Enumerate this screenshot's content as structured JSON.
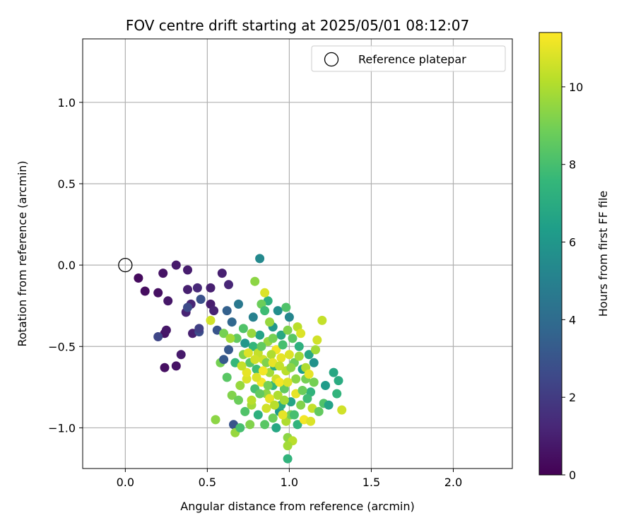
{
  "chart_data": {
    "type": "scatter",
    "title": "FOV centre drift starting at 2025/05/01 08:12:07",
    "xlabel": "Angular distance from reference (arcmin)",
    "ylabel": "Rotation from reference (arcmin)",
    "xlim": [
      -0.26,
      2.36
    ],
    "ylim": [
      -1.25,
      1.39
    ],
    "xticks": [
      0.0,
      0.5,
      1.0,
      1.5,
      2.0
    ],
    "xtick_labels": [
      "0.0",
      "0.5",
      "1.0",
      "1.5",
      "2.0"
    ],
    "yticks": [
      -1.0,
      -0.5,
      0.0,
      0.5,
      1.0
    ],
    "ytick_labels": [
      "−1.0",
      "−0.5",
      "0.0",
      "0.5",
      "1.0"
    ],
    "grid": true,
    "legend": {
      "placement": "top-right",
      "entries": [
        "Reference platepar"
      ]
    },
    "reference_point": {
      "x": 0.0,
      "y": 0.0
    },
    "colorbar": {
      "label": "Hours from first FF file",
      "range": [
        0,
        11.4
      ],
      "ticks": [
        0,
        2,
        4,
        6,
        8,
        10
      ],
      "tick_labels": [
        "0",
        "2",
        "4",
        "6",
        "8",
        "10"
      ],
      "colormap": "viridis",
      "colormap_stops": [
        "#440154",
        "#482878",
        "#3e4989",
        "#31688e",
        "#26828e",
        "#1f9e89",
        "#35b779",
        "#6ece58",
        "#b5de2b",
        "#fde725"
      ]
    },
    "series": [
      {
        "x_y_hours": [
          [
            0.08,
            -0.08,
            0.3
          ],
          [
            0.12,
            -0.16,
            0.4
          ],
          [
            0.2,
            -0.17,
            0.5
          ],
          [
            0.23,
            -0.05,
            0.6
          ],
          [
            0.26,
            -0.22,
            0.7
          ],
          [
            0.31,
            0.0,
            0.8
          ],
          [
            0.38,
            -0.03,
            0.9
          ],
          [
            0.38,
            -0.15,
            1.0
          ],
          [
            0.37,
            -0.29,
            1.1
          ],
          [
            0.4,
            -0.24,
            1.2
          ],
          [
            0.44,
            -0.14,
            1.3
          ],
          [
            0.52,
            -0.14,
            1.0
          ],
          [
            0.52,
            -0.24,
            0.9
          ],
          [
            0.54,
            -0.28,
            1.1
          ],
          [
            0.59,
            -0.05,
            1.0
          ],
          [
            0.63,
            -0.12,
            1.2
          ],
          [
            0.24,
            -0.42,
            0.6
          ],
          [
            0.25,
            -0.4,
            0.7
          ],
          [
            0.24,
            -0.63,
            0.5
          ],
          [
            0.31,
            -0.62,
            0.6
          ],
          [
            0.34,
            -0.55,
            0.8
          ],
          [
            0.41,
            -0.42,
            1.0
          ],
          [
            0.2,
            -0.44,
            2.4
          ],
          [
            0.38,
            -0.26,
            2.6
          ],
          [
            0.45,
            -0.41,
            2.7
          ],
          [
            0.45,
            -0.39,
            2.2
          ],
          [
            0.46,
            -0.21,
            2.9
          ],
          [
            0.56,
            -0.4,
            3.0
          ],
          [
            0.62,
            -0.28,
            3.5
          ],
          [
            0.65,
            -0.35,
            3.8
          ],
          [
            0.63,
            -0.52,
            3.2
          ],
          [
            0.66,
            -0.98,
            3.0
          ],
          [
            0.78,
            -0.32,
            5.0
          ],
          [
            0.69,
            -0.24,
            4.6
          ],
          [
            0.82,
            0.04,
            5.4
          ],
          [
            0.52,
            -0.34,
            10.6
          ],
          [
            0.6,
            -0.42,
            9.0
          ],
          [
            0.68,
            -0.45,
            8.6
          ],
          [
            0.72,
            -0.39,
            8.2
          ],
          [
            0.78,
            -0.5,
            7.5
          ],
          [
            0.82,
            -0.43,
            6.6
          ],
          [
            0.9,
            -0.38,
            6.0
          ],
          [
            0.93,
            -0.28,
            5.6
          ],
          [
            1.0,
            -0.32,
            5.2
          ],
          [
            0.87,
            -0.22,
            7.2
          ],
          [
            0.95,
            -0.43,
            6.8
          ],
          [
            0.83,
            -0.24,
            8.8
          ],
          [
            0.79,
            -0.1,
            9.4
          ],
          [
            0.85,
            -0.17,
            10.8
          ],
          [
            0.88,
            -0.35,
            9.6
          ],
          [
            0.99,
            -0.4,
            9.2
          ],
          [
            1.02,
            -0.45,
            8.4
          ],
          [
            1.05,
            -0.38,
            10.2
          ],
          [
            1.07,
            -0.42,
            10.8
          ],
          [
            1.12,
            -0.55,
            6.8
          ],
          [
            1.15,
            -0.6,
            5.8
          ],
          [
            1.16,
            -0.52,
            9.8
          ],
          [
            1.2,
            -0.34,
            10.4
          ],
          [
            0.72,
            -0.55,
            9.2
          ],
          [
            0.76,
            -0.6,
            8.4
          ],
          [
            0.8,
            -0.64,
            7.8
          ],
          [
            0.84,
            -0.58,
            10.6
          ],
          [
            0.88,
            -0.66,
            9.8
          ],
          [
            0.91,
            -0.62,
            7.0
          ],
          [
            0.95,
            -0.57,
            11.0
          ],
          [
            0.98,
            -0.65,
            10.2
          ],
          [
            1.03,
            -0.6,
            8.8
          ],
          [
            1.08,
            -0.64,
            6.4
          ],
          [
            1.1,
            -0.7,
            9.0
          ],
          [
            1.13,
            -0.78,
            7.4
          ],
          [
            0.7,
            -0.74,
            9.6
          ],
          [
            0.74,
            -0.7,
            10.8
          ],
          [
            0.79,
            -0.76,
            8.0
          ],
          [
            0.83,
            -0.72,
            11.2
          ],
          [
            0.86,
            -0.79,
            9.4
          ],
          [
            0.9,
            -0.74,
            7.6
          ],
          [
            0.93,
            -0.8,
            10.0
          ],
          [
            0.97,
            -0.76,
            8.6
          ],
          [
            1.01,
            -0.84,
            6.6
          ],
          [
            1.04,
            -0.79,
            11.0
          ],
          [
            1.07,
            -0.86,
            9.2
          ],
          [
            1.11,
            -0.82,
            7.8
          ],
          [
            1.14,
            -0.88,
            10.4
          ],
          [
            0.73,
            -0.9,
            8.2
          ],
          [
            0.77,
            -0.86,
            9.8
          ],
          [
            0.81,
            -0.92,
            7.2
          ],
          [
            0.86,
            -0.88,
            10.6
          ],
          [
            0.9,
            -0.94,
            8.8
          ],
          [
            0.94,
            -0.9,
            6.2
          ],
          [
            0.98,
            -0.96,
            10.0
          ],
          [
            1.01,
            -0.92,
            9.0
          ],
          [
            1.05,
            -0.98,
            7.4
          ],
          [
            1.09,
            -0.95,
            11.2
          ],
          [
            0.55,
            -0.95,
            9.4
          ],
          [
            0.67,
            -1.03,
            9.6
          ],
          [
            0.7,
            -1.0,
            8.0
          ],
          [
            0.76,
            -0.98,
            9.2
          ],
          [
            0.85,
            -0.98,
            8.4
          ],
          [
            0.92,
            -1.0,
            6.8
          ],
          [
            0.99,
            -1.06,
            9.4
          ],
          [
            1.02,
            -1.08,
            10.2
          ],
          [
            0.99,
            -1.11,
            9.8
          ],
          [
            0.99,
            -1.19,
            7.4
          ],
          [
            1.13,
            -0.96,
            10.8
          ],
          [
            1.22,
            -0.74,
            6.2
          ],
          [
            1.27,
            -0.66,
            6.8
          ],
          [
            1.29,
            -0.79,
            7.4
          ],
          [
            1.3,
            -0.71,
            7.0
          ],
          [
            1.32,
            -0.89,
            10.6
          ],
          [
            1.21,
            -0.85,
            8.2
          ],
          [
            1.24,
            -0.86,
            6.6
          ],
          [
            1.18,
            -0.9,
            8.6
          ],
          [
            0.58,
            -0.6,
            9.0
          ],
          [
            0.62,
            -0.69,
            8.4
          ],
          [
            0.65,
            -0.8,
            9.2
          ],
          [
            0.69,
            -0.83,
            8.8
          ],
          [
            0.74,
            -0.66,
            11.0
          ],
          [
            0.81,
            -0.54,
            10.4
          ],
          [
            0.87,
            -0.47,
            9.6
          ],
          [
            0.92,
            -0.52,
            11.2
          ],
          [
            0.96,
            -0.49,
            8.0
          ],
          [
            1.0,
            -0.55,
            10.8
          ],
          [
            0.64,
            -0.45,
            9.8
          ],
          [
            0.67,
            -0.6,
            7.6
          ],
          [
            0.6,
            -0.58,
            3.2
          ],
          [
            0.73,
            -0.48,
            6.0
          ],
          [
            0.85,
            -0.28,
            7.8
          ],
          [
            0.9,
            -0.45,
            9.0
          ],
          [
            0.98,
            -0.26,
            8.2
          ],
          [
            1.06,
            -0.5,
            7.2
          ],
          [
            1.1,
            -0.63,
            10.0
          ],
          [
            0.77,
            -0.83,
            10.2
          ],
          [
            0.82,
            -0.79,
            8.6
          ],
          [
            0.88,
            -0.82,
            11.0
          ],
          [
            0.95,
            -0.86,
            7.0
          ],
          [
            1.04,
            -0.7,
            9.4
          ],
          [
            0.8,
            -0.69,
            10.8
          ],
          [
            0.86,
            -0.6,
            9.2
          ],
          [
            0.92,
            -0.7,
            10.6
          ],
          [
            0.97,
            -0.83,
            9.8
          ],
          [
            1.03,
            -0.92,
            8.0
          ],
          [
            0.94,
            -0.72,
            11.2
          ],
          [
            0.89,
            -0.55,
            10.0
          ],
          [
            0.83,
            -0.5,
            8.6
          ],
          [
            0.77,
            -0.42,
            9.6
          ],
          [
            0.71,
            -0.62,
            10.4
          ],
          [
            1.08,
            -0.77,
            8.8
          ],
          [
            1.12,
            -0.67,
            11.0
          ],
          [
            1.15,
            -0.72,
            9.0
          ],
          [
            1.17,
            -0.46,
            10.6
          ],
          [
            0.75,
            -0.54,
            10.8
          ],
          [
            0.96,
            -0.92,
            11.0
          ],
          [
            0.91,
            -0.86,
            10.2
          ],
          [
            0.87,
            -0.74,
            9.0
          ],
          [
            0.84,
            -0.65,
            11.2
          ],
          [
            0.79,
            -0.58,
            10.6
          ],
          [
            1.01,
            -0.63,
            9.4
          ],
          [
            0.99,
            -0.72,
            10.8
          ],
          [
            1.06,
            -0.56,
            9.8
          ],
          [
            0.9,
            -0.6,
            11.0
          ],
          [
            0.94,
            -0.62,
            10.4
          ]
        ]
      }
    ]
  }
}
